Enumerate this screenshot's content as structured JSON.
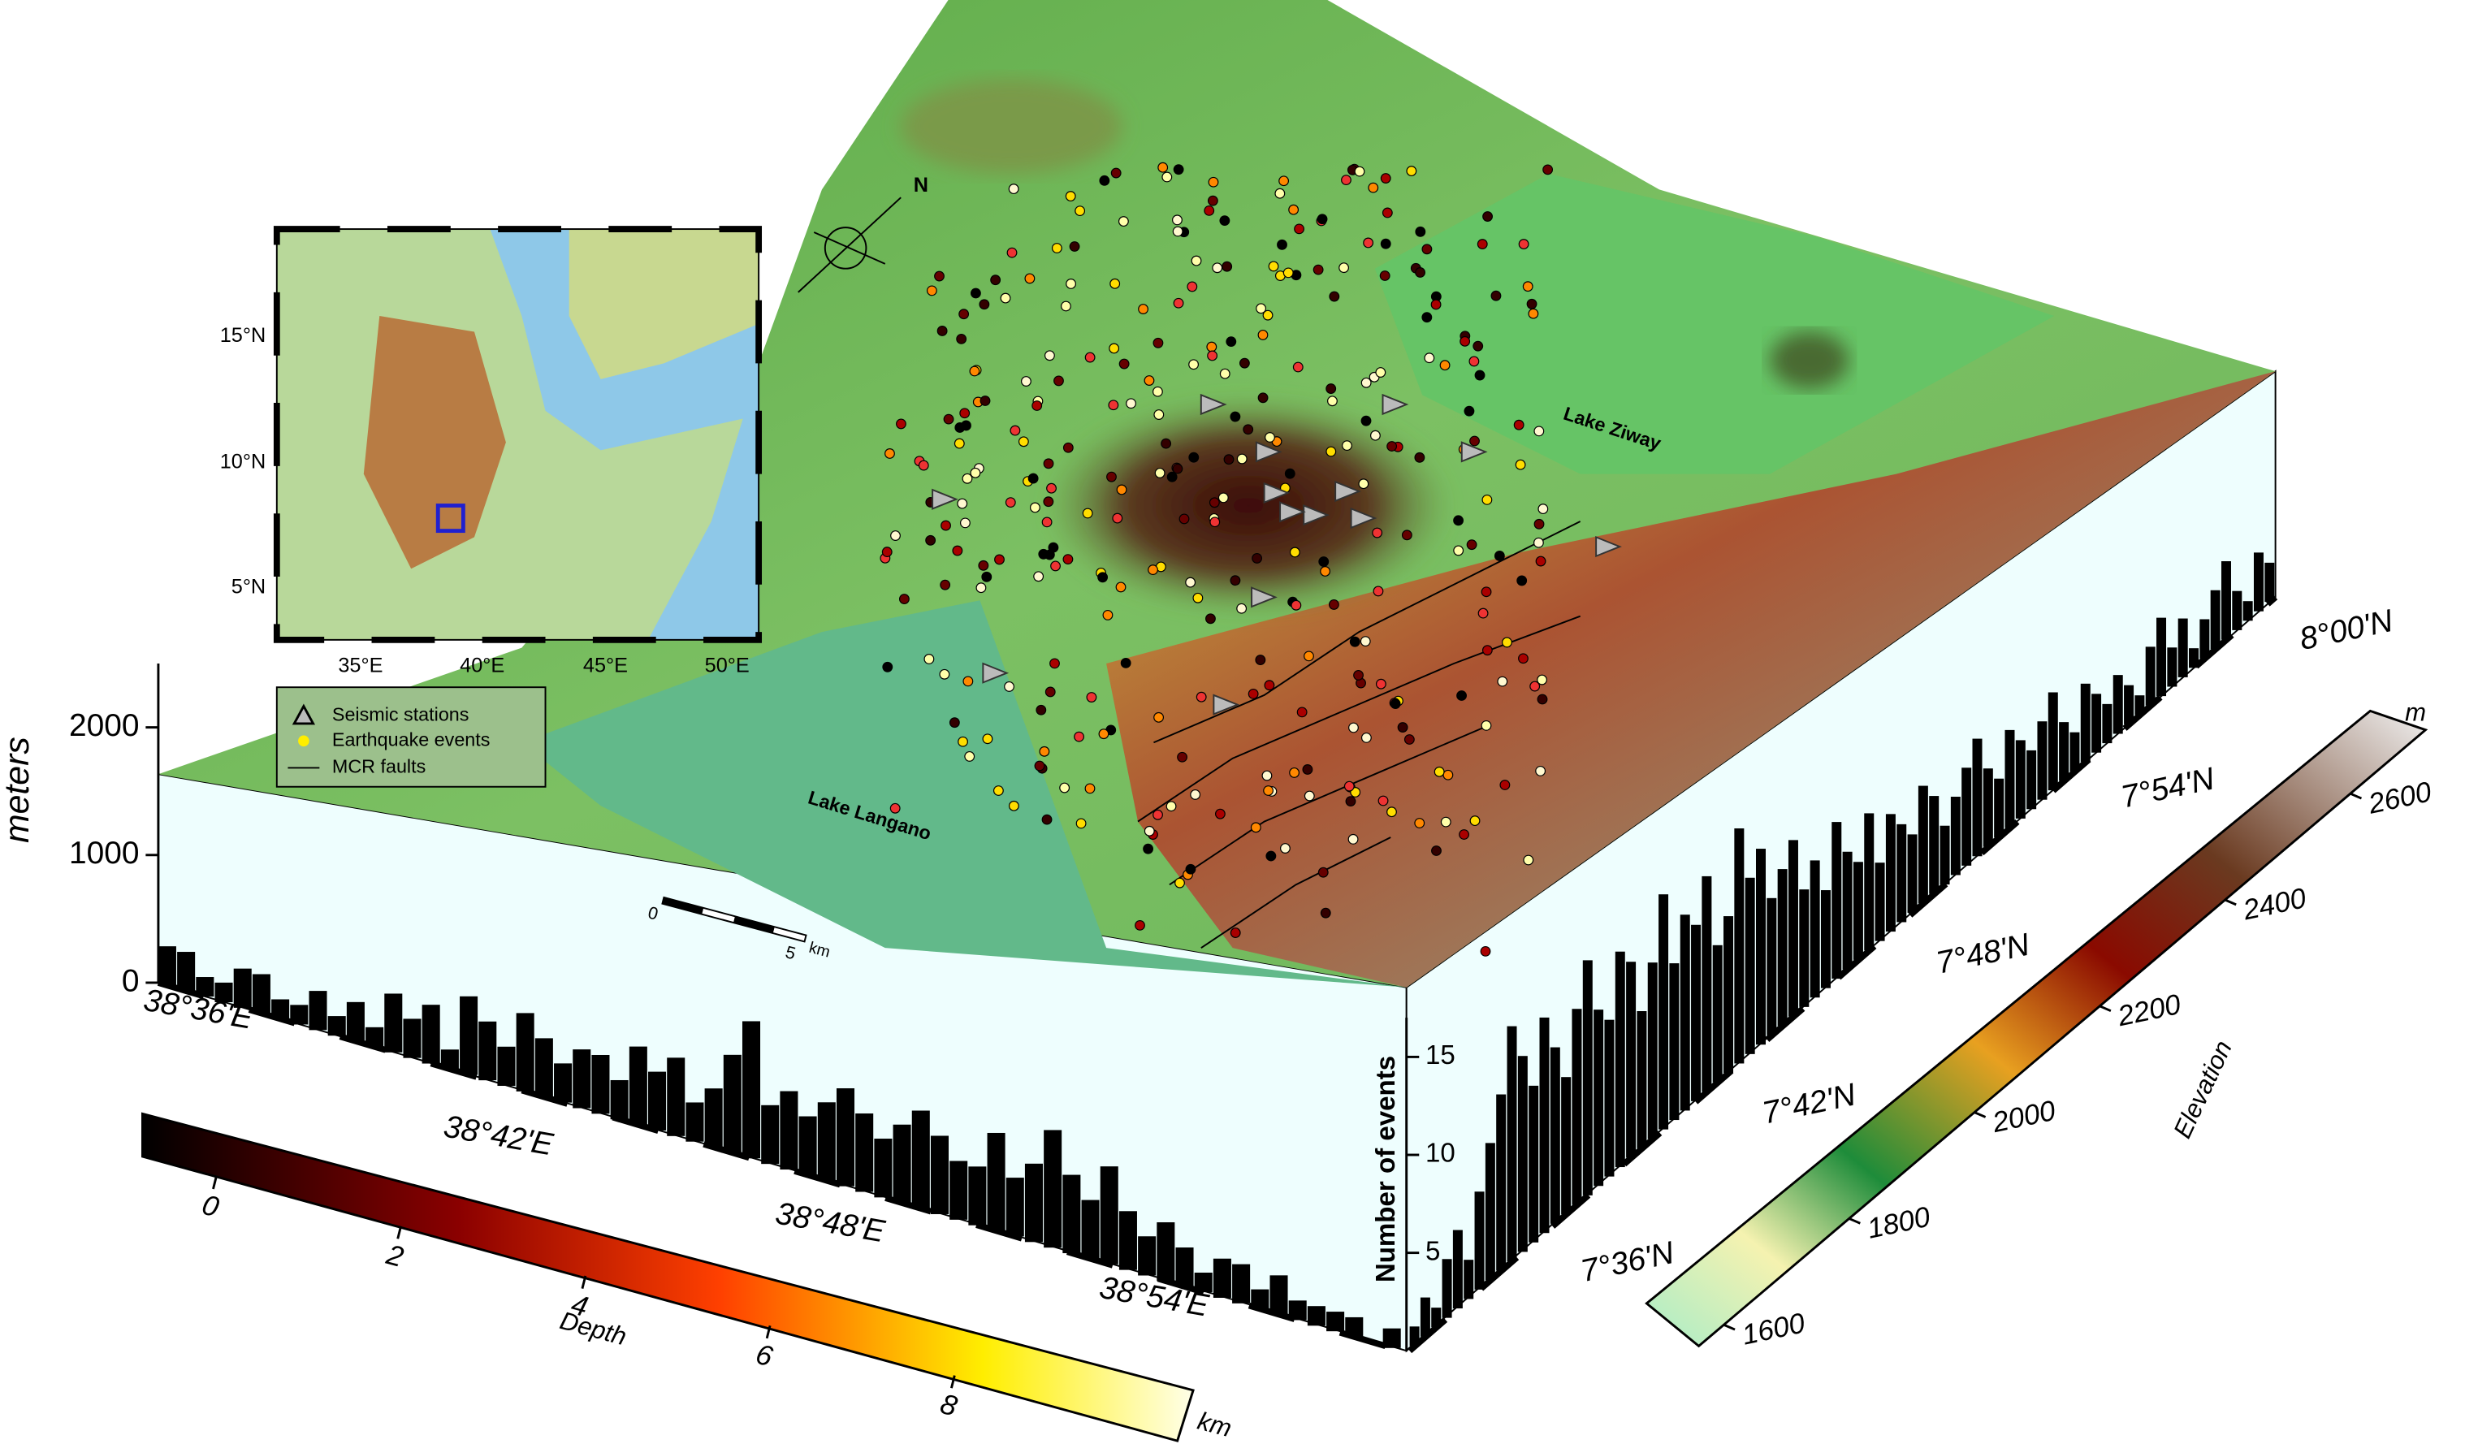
{
  "inset_map": {
    "lat_labels": [
      "15°N",
      "10°N",
      "5°N"
    ],
    "lon_labels": [
      "35°E",
      "40°E",
      "45°E",
      "50°E"
    ]
  },
  "legend": {
    "items": [
      "Seismic stations",
      "Earthquake events",
      "MCR faults"
    ]
  },
  "labels": {
    "lake_ziway": "Lake Ziway",
    "lake_langano": "Lake Langano",
    "north": "N"
  },
  "scale_bar": {
    "start": "0",
    "end": "5",
    "unit": "km"
  },
  "elevation_axis": {
    "title": "meters",
    "lim": [
      0,
      2500
    ],
    "ticks": [
      0,
      1000,
      2000
    ]
  },
  "longitude_labels": [
    "38°36'E",
    "38°42'E",
    "38°48'E",
    "38°54'E"
  ],
  "latitude_labels": [
    "7°36'N",
    "7°42'N",
    "7°48'N",
    "7°54'N",
    "8°00'N"
  ],
  "histograms": {
    "axis_title": "Number of events",
    "ticks": [
      5,
      10,
      15
    ],
    "front_counts": [
      2,
      2,
      1,
      1,
      2,
      2,
      1,
      1,
      2,
      1,
      2,
      1,
      3,
      2,
      3,
      1,
      4,
      3,
      2,
      4,
      3,
      2,
      3,
      3,
      2,
      4,
      3,
      4,
      2,
      3,
      5,
      7,
      3,
      4,
      3,
      4,
      5,
      4,
      3,
      4,
      5,
      4,
      3,
      3,
      5,
      3,
      4,
      6,
      4,
      3,
      5,
      3,
      2,
      3,
      2,
      1,
      2,
      2,
      1,
      2,
      1,
      1,
      1,
      1,
      0,
      1
    ],
    "side_counts": [
      1,
      2,
      1,
      3,
      4,
      2,
      5,
      7,
      9,
      12,
      10,
      8,
      11,
      9,
      7,
      10,
      12,
      9,
      8,
      11,
      10,
      7,
      9,
      12,
      8,
      10,
      9,
      11,
      7,
      8,
      12,
      9,
      10,
      7,
      8,
      9,
      6,
      7,
      5,
      8,
      6,
      5,
      7,
      4,
      6,
      5,
      4,
      6,
      5,
      3,
      4,
      5,
      6,
      4,
      3,
      5,
      4,
      3,
      4,
      5,
      3,
      2,
      4,
      3,
      2,
      3,
      2,
      1,
      3,
      4,
      2,
      3,
      1,
      2,
      3,
      4,
      2,
      1,
      3,
      2
    ]
  },
  "depth_colorbar": {
    "title": "Depth",
    "unit": "km",
    "lim": [
      -0.8,
      10.5
    ],
    "ticks": [
      0,
      2,
      4,
      6,
      8
    ]
  },
  "elevation_colorbar": {
    "title": "Elevation",
    "unit": "m",
    "lim": [
      1560,
      2720
    ],
    "ticks": [
      1600,
      1800,
      2000,
      2200,
      2400,
      2600
    ]
  }
}
